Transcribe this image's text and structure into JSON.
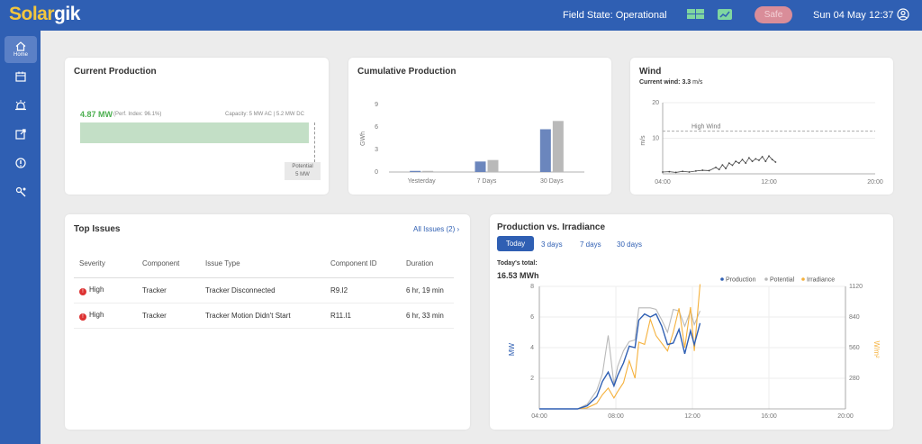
{
  "header": {
    "logo_part1": "Solar",
    "logo_part2": "gik",
    "field_state": "Field State: Operational",
    "safe_label": "Safe",
    "date": "Sun 04 May",
    "time": "12:37",
    "icons": [
      "panels-icon",
      "chart-icon",
      "user-icon"
    ]
  },
  "sidebar": {
    "items": [
      {
        "icon": "home-icon",
        "label": "Home",
        "active": true
      },
      {
        "icon": "calendar-icon",
        "label": ""
      },
      {
        "icon": "alarm-icon",
        "label": ""
      },
      {
        "icon": "report-icon",
        "label": ""
      },
      {
        "icon": "alert-icon",
        "label": ""
      },
      {
        "icon": "tools-icon",
        "label": ""
      }
    ]
  },
  "current_production": {
    "title": "Current Production",
    "value": "4.87 MW",
    "perf_index": "(Perf. Index: 96.1%)",
    "capacity": "Capacity: 5 MW AC | 5.2 MW DC",
    "fill_fraction": 0.974,
    "potential_label": "Potential",
    "potential_value": "5 MW",
    "bar_color": "#c3dfc6"
  },
  "cumulative": {
    "title": "Cumulative Production",
    "ylabel": "GWh"
  },
  "wind": {
    "title": "Wind",
    "current_label": "Current wind:",
    "current_value": "3.3",
    "current_unit": "m/s",
    "ylabel": "m/s",
    "threshold_label": "High Wind"
  },
  "top_issues": {
    "title": "Top Issues",
    "all_link": "All Issues (2) ›",
    "columns": [
      "Severity",
      "Component",
      "Issue Type",
      "Component ID",
      "Duration"
    ],
    "rows": [
      {
        "severity": "High",
        "component": "Tracker",
        "issue_type": "Tracker Disconnected",
        "component_id": "R9.I2",
        "duration": "6 hr, 19 min"
      },
      {
        "severity": "High",
        "component": "Tracker",
        "issue_type": "Tracker Motion Didn't Start",
        "component_id": "R11.I1",
        "duration": "6 hr, 33 min"
      }
    ]
  },
  "prod_irr": {
    "title": "Production vs. Irradiance",
    "tabs": [
      "Today",
      "3 days",
      "7 days",
      "30 days"
    ],
    "active_tab": "Today",
    "total_label": "Today's total:",
    "total_value": "16.53 MWh",
    "ylabel_left": "MW",
    "ylabel_right": "W/m²",
    "legend": [
      "Production",
      "Potential",
      "Irradiance"
    ],
    "colors": {
      "production": "#2f5fb3",
      "potential": "#b9b9b9",
      "irradiance": "#f5b13c"
    }
  },
  "chart_data": [
    {
      "type": "bar",
      "title": "Cumulative Production",
      "ylabel": "GWh",
      "ylim": [
        0,
        9
      ],
      "yticks": [
        0,
        3,
        6,
        9
      ],
      "categories": [
        "Yesterday",
        "7 Days",
        "30 Days"
      ],
      "series": [
        {
          "name": "",
          "color": "#6b86bd",
          "values": [
            0.15,
            1.4,
            5.7
          ]
        },
        {
          "name": "",
          "color": "#b9b9b9",
          "values": [
            0.15,
            1.6,
            6.8
          ]
        }
      ]
    },
    {
      "type": "line",
      "title": "Wind",
      "ylabel": "m/s",
      "ylim": [
        0,
        20
      ],
      "yticks": [
        0,
        10,
        20
      ],
      "xticks": [
        "04:00",
        "12:00",
        "20:00"
      ],
      "threshold": 12,
      "threshold_label": "High Wind",
      "x": [
        4,
        4.5,
        5,
        5.5,
        6,
        6.5,
        7,
        7.5,
        8,
        8.25,
        8.5,
        8.75,
        9,
        9.25,
        9.5,
        9.75,
        10,
        10.25,
        10.5,
        10.75,
        11,
        11.25,
        11.5,
        11.75,
        12,
        12.25,
        12.5
      ],
      "y": [
        0.5,
        0.6,
        0.4,
        0.7,
        0.5,
        0.8,
        1,
        0.9,
        1.8,
        1.2,
        2.5,
        1.5,
        3,
        2.4,
        3.5,
        3,
        4,
        3,
        4.5,
        3.5,
        4.2,
        3.8,
        4.8,
        3.5,
        5,
        4,
        3.3
      ]
    },
    {
      "type": "line",
      "title": "Production vs. Irradiance",
      "ylabel": "MW",
      "y2label": "W/m²",
      "ylim": [
        0,
        8
      ],
      "y2lim": [
        0,
        1120
      ],
      "yticks": [
        2,
        4,
        6,
        8
      ],
      "y2ticks": [
        280,
        560,
        840,
        1120
      ],
      "xticks": [
        "04:00",
        "08:00",
        "12:00",
        "16:00",
        "20:00"
      ],
      "series": [
        {
          "name": "Production",
          "axis": "left",
          "x": [
            4,
            5,
            6,
            6.5,
            7,
            7.3,
            7.6,
            7.9,
            8.1,
            8.4,
            8.7,
            9,
            9.2,
            9.5,
            9.8,
            10.1,
            10.4,
            10.7,
            11,
            11.3,
            11.6,
            11.9,
            12.1,
            12.4
          ],
          "y": [
            0,
            0,
            0,
            0.2,
            0.8,
            1.8,
            2.4,
            1.5,
            2.2,
            3,
            4.1,
            4,
            5.8,
            6.2,
            6,
            6.2,
            5.4,
            4.2,
            4.3,
            5.2,
            3.6,
            5.1,
            4.2,
            5.6
          ]
        },
        {
          "name": "Potential",
          "axis": "left",
          "x": [
            4,
            5,
            6,
            6.5,
            7,
            7.3,
            7.6,
            7.9,
            8.1,
            8.4,
            8.7,
            9,
            9.2,
            9.5,
            9.8,
            10.1,
            10.4,
            10.7,
            11,
            11.3,
            11.6,
            11.9,
            12.1,
            12.4
          ],
          "y": [
            0,
            0,
            0,
            0.3,
            1.2,
            2.3,
            4.8,
            1.6,
            2.8,
            3.8,
            4.4,
            4.5,
            6.6,
            6.6,
            6.6,
            6.5,
            5.8,
            5,
            6.5,
            6.4,
            5.4,
            6.4,
            5.5,
            6.4
          ]
        },
        {
          "name": "Irradiance",
          "axis": "right",
          "x": [
            4,
            5,
            6,
            6.5,
            7,
            7.3,
            7.6,
            7.9,
            8.1,
            8.4,
            8.7,
            9,
            9.2,
            9.5,
            9.8,
            10.1,
            10.4,
            10.7,
            11,
            11.3,
            11.6,
            11.9,
            12.1,
            12.4
          ],
          "y": [
            0,
            0,
            0,
            10,
            50,
            130,
            190,
            100,
            160,
            240,
            440,
            280,
            610,
            590,
            820,
            670,
            600,
            530,
            700,
            920,
            560,
            930,
            530,
            1140
          ]
        }
      ]
    }
  ]
}
